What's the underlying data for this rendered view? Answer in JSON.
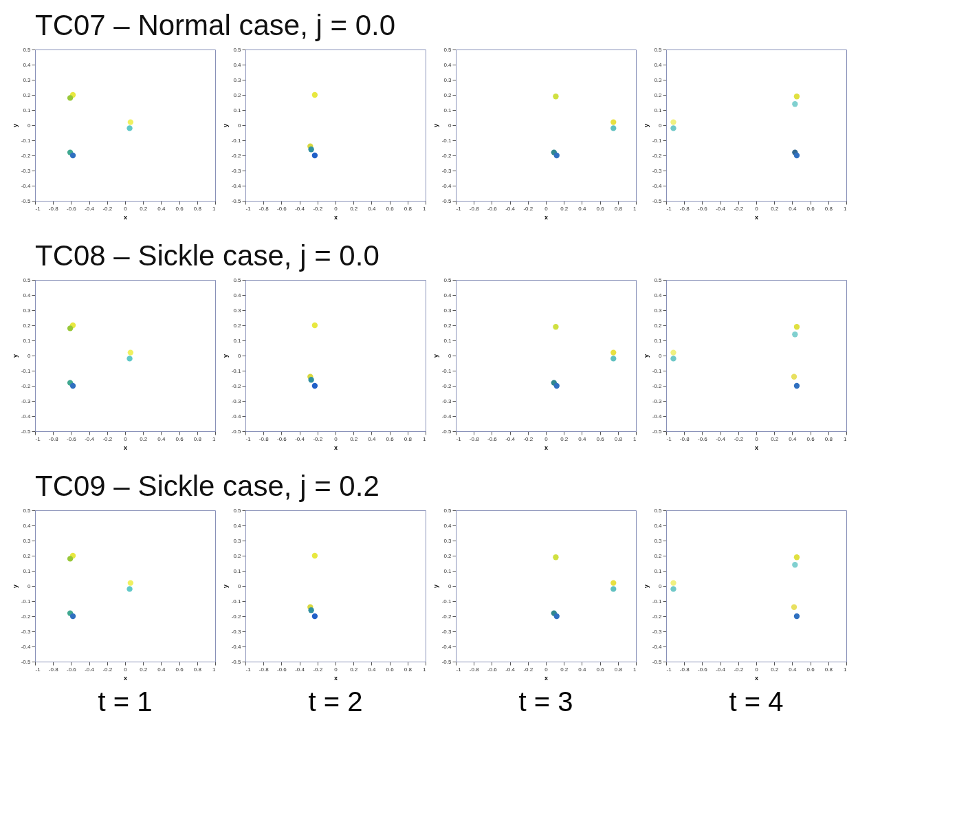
{
  "chart_data": [
    {
      "type": "scatter",
      "title": "TC07 – Normal case, j = 0.0",
      "xlabel": "x",
      "ylabel": "y",
      "xlim": [
        -1,
        1
      ],
      "ylim": [
        -0.5,
        0.5
      ],
      "xticks": [
        -1,
        -0.8,
        -0.6,
        -0.4,
        -0.2,
        0,
        0.2,
        0.4,
        0.6,
        0.8,
        1
      ],
      "yticks": [
        -0.5,
        -0.4,
        -0.3,
        -0.2,
        -0.1,
        0,
        0.1,
        0.2,
        0.3,
        0.4,
        0.5
      ],
      "x": [
        -0.58,
        -0.61,
        0.06,
        0.05,
        -0.61,
        -0.58
      ],
      "values": [
        0.2,
        0.18,
        0.02,
        -0.02,
        -0.18,
        -0.2
      ],
      "colors": [
        "#e8e840",
        "#98c838",
        "#f0f060",
        "#60c8c8",
        "#40a890",
        "#3070c0"
      ]
    },
    {
      "type": "scatter",
      "xlabel": "x",
      "ylabel": "y",
      "xlim": [
        -1,
        1
      ],
      "ylim": [
        -0.5,
        0.5
      ],
      "xticks": [
        -1,
        -0.8,
        -0.6,
        -0.4,
        -0.2,
        0,
        0.2,
        0.4,
        0.6,
        0.8,
        1
      ],
      "yticks": [
        -0.5,
        -0.4,
        -0.3,
        -0.2,
        -0.1,
        0,
        0.1,
        0.2,
        0.3,
        0.4,
        0.5
      ],
      "x": [
        -0.23,
        -0.28,
        -0.27,
        -0.23
      ],
      "values": [
        0.2,
        -0.14,
        -0.16,
        -0.2
      ],
      "colors": [
        "#e8e840",
        "#d8d840",
        "#3090a0",
        "#2060c8"
      ]
    },
    {
      "type": "scatter",
      "xlabel": "x",
      "ylabel": "y",
      "xlim": [
        -1,
        1
      ],
      "ylim": [
        -0.5,
        0.5
      ],
      "xticks": [
        -1,
        -0.8,
        -0.6,
        -0.4,
        -0.2,
        0,
        0.2,
        0.4,
        0.6,
        0.8,
        1
      ],
      "yticks": [
        -0.5,
        -0.4,
        -0.3,
        -0.2,
        -0.1,
        0,
        0.1,
        0.2,
        0.3,
        0.4,
        0.5
      ],
      "x": [
        0.11,
        0.75,
        0.75,
        0.09,
        0.12
      ],
      "values": [
        0.19,
        0.02,
        -0.02,
        -0.18,
        -0.2
      ],
      "colors": [
        "#d0e040",
        "#e8e040",
        "#60c0c0",
        "#308890",
        "#3070c0"
      ]
    },
    {
      "type": "scatter",
      "xlabel": "x",
      "ylabel": "y",
      "xlim": [
        -1,
        1
      ],
      "ylim": [
        -0.5,
        0.5
      ],
      "xticks": [
        -1,
        -0.8,
        -0.6,
        -0.4,
        -0.2,
        0,
        0.2,
        0.4,
        0.6,
        0.8,
        1
      ],
      "yticks": [
        -0.5,
        -0.4,
        -0.3,
        -0.2,
        -0.1,
        0,
        0.1,
        0.2,
        0.3,
        0.4,
        0.5
      ],
      "x": [
        0.45,
        0.43,
        -0.92,
        -0.92,
        0.43,
        0.45
      ],
      "values": [
        0.19,
        0.14,
        0.02,
        -0.02,
        -0.18,
        -0.2
      ],
      "colors": [
        "#e0e040",
        "#80d0d0",
        "#f0f080",
        "#70c8c8",
        "#306890",
        "#3070c0"
      ]
    },
    {
      "type": "scatter",
      "title": "TC08 – Sickle case, j = 0.0",
      "xlabel": "x",
      "ylabel": "y",
      "xlim": [
        -1,
        1
      ],
      "ylim": [
        -0.5,
        0.5
      ],
      "xticks": [
        -1,
        -0.8,
        -0.6,
        -0.4,
        -0.2,
        0,
        0.2,
        0.4,
        0.6,
        0.8,
        1
      ],
      "yticks": [
        -0.5,
        -0.4,
        -0.3,
        -0.2,
        -0.1,
        0,
        0.1,
        0.2,
        0.3,
        0.4,
        0.5
      ],
      "x": [
        -0.58,
        -0.61,
        0.06,
        0.05,
        -0.61,
        -0.58
      ],
      "values": [
        0.2,
        0.18,
        0.02,
        -0.02,
        -0.18,
        -0.2
      ],
      "colors": [
        "#e8e840",
        "#98c838",
        "#f0f060",
        "#60c8c8",
        "#40a890",
        "#3070c0"
      ]
    },
    {
      "type": "scatter",
      "xlabel": "x",
      "ylabel": "y",
      "xlim": [
        -1,
        1
      ],
      "ylim": [
        -0.5,
        0.5
      ],
      "xticks": [
        -1,
        -0.8,
        -0.6,
        -0.4,
        -0.2,
        0,
        0.2,
        0.4,
        0.6,
        0.8,
        1
      ],
      "yticks": [
        -0.5,
        -0.4,
        -0.3,
        -0.2,
        -0.1,
        0,
        0.1,
        0.2,
        0.3,
        0.4,
        0.5
      ],
      "x": [
        -0.23,
        -0.28,
        -0.27,
        -0.23
      ],
      "values": [
        0.2,
        -0.14,
        -0.16,
        -0.2
      ],
      "colors": [
        "#e8e840",
        "#d8d840",
        "#3090a0",
        "#2060c8"
      ]
    },
    {
      "type": "scatter",
      "xlabel": "x",
      "ylabel": "y",
      "xlim": [
        -1,
        1
      ],
      "ylim": [
        -0.5,
        0.5
      ],
      "xticks": [
        -1,
        -0.8,
        -0.6,
        -0.4,
        -0.2,
        0,
        0.2,
        0.4,
        0.6,
        0.8,
        1
      ],
      "yticks": [
        -0.5,
        -0.4,
        -0.3,
        -0.2,
        -0.1,
        0,
        0.1,
        0.2,
        0.3,
        0.4,
        0.5
      ],
      "x": [
        0.11,
        0.75,
        0.75,
        0.09,
        0.12
      ],
      "values": [
        0.19,
        0.02,
        -0.02,
        -0.18,
        -0.2
      ],
      "colors": [
        "#d0e040",
        "#e8e040",
        "#60c0c0",
        "#308890",
        "#3070c0"
      ]
    },
    {
      "type": "scatter",
      "xlabel": "x",
      "ylabel": "y",
      "xlim": [
        -1,
        1
      ],
      "ylim": [
        -0.5,
        0.5
      ],
      "xticks": [
        -1,
        -0.8,
        -0.6,
        -0.4,
        -0.2,
        0,
        0.2,
        0.4,
        0.6,
        0.8,
        1
      ],
      "yticks": [
        -0.5,
        -0.4,
        -0.3,
        -0.2,
        -0.1,
        0,
        0.1,
        0.2,
        0.3,
        0.4,
        0.5
      ],
      "x": [
        0.45,
        0.43,
        -0.92,
        -0.92,
        0.42,
        0.45
      ],
      "values": [
        0.19,
        0.14,
        0.02,
        -0.02,
        -0.14,
        -0.2
      ],
      "colors": [
        "#e0e040",
        "#80d0d0",
        "#f0f080",
        "#70c8c8",
        "#e8e060",
        "#3070c0"
      ]
    },
    {
      "type": "scatter",
      "title": "TC09 – Sickle case, j = 0.2",
      "xlabel": "x",
      "ylabel": "y",
      "annotations": [
        "t = 1"
      ],
      "xlim": [
        -1,
        1
      ],
      "ylim": [
        -0.5,
        0.5
      ],
      "xticks": [
        -1,
        -0.8,
        -0.6,
        -0.4,
        -0.2,
        0,
        0.2,
        0.4,
        0.6,
        0.8,
        1
      ],
      "yticks": [
        -0.5,
        -0.4,
        -0.3,
        -0.2,
        -0.1,
        0,
        0.1,
        0.2,
        0.3,
        0.4,
        0.5
      ],
      "x": [
        -0.58,
        -0.61,
        0.06,
        0.05,
        -0.61,
        -0.58
      ],
      "values": [
        0.2,
        0.18,
        0.02,
        -0.02,
        -0.18,
        -0.2
      ],
      "colors": [
        "#e8e840",
        "#98c838",
        "#f0f060",
        "#60c8c8",
        "#40a890",
        "#3070c0"
      ]
    },
    {
      "type": "scatter",
      "xlabel": "x",
      "ylabel": "y",
      "annotations": [
        "t = 2"
      ],
      "xlim": [
        -1,
        1
      ],
      "ylim": [
        -0.5,
        0.5
      ],
      "xticks": [
        -1,
        -0.8,
        -0.6,
        -0.4,
        -0.2,
        0,
        0.2,
        0.4,
        0.6,
        0.8,
        1
      ],
      "yticks": [
        -0.5,
        -0.4,
        -0.3,
        -0.2,
        -0.1,
        0,
        0.1,
        0.2,
        0.3,
        0.4,
        0.5
      ],
      "x": [
        -0.23,
        -0.28,
        -0.27,
        -0.23
      ],
      "values": [
        0.2,
        -0.14,
        -0.16,
        -0.2
      ],
      "colors": [
        "#e8e840",
        "#d8d840",
        "#3090a0",
        "#2060c8"
      ]
    },
    {
      "type": "scatter",
      "xlabel": "x",
      "ylabel": "y",
      "annotations": [
        "t = 3"
      ],
      "xlim": [
        -1,
        1
      ],
      "ylim": [
        -0.5,
        0.5
      ],
      "xticks": [
        -1,
        -0.8,
        -0.6,
        -0.4,
        -0.2,
        0,
        0.2,
        0.4,
        0.6,
        0.8,
        1
      ],
      "yticks": [
        -0.5,
        -0.4,
        -0.3,
        -0.2,
        -0.1,
        0,
        0.1,
        0.2,
        0.3,
        0.4,
        0.5
      ],
      "x": [
        0.11,
        0.75,
        0.75,
        0.09,
        0.12
      ],
      "values": [
        0.19,
        0.02,
        -0.02,
        -0.18,
        -0.2
      ],
      "colors": [
        "#d0e040",
        "#e8e040",
        "#60c0c0",
        "#308890",
        "#3070c0"
      ]
    },
    {
      "type": "scatter",
      "xlabel": "x",
      "ylabel": "y",
      "annotations": [
        "t = 4"
      ],
      "xlim": [
        -1,
        1
      ],
      "ylim": [
        -0.5,
        0.5
      ],
      "xticks": [
        -1,
        -0.8,
        -0.6,
        -0.4,
        -0.2,
        0,
        0.2,
        0.4,
        0.6,
        0.8,
        1
      ],
      "yticks": [
        -0.5,
        -0.4,
        -0.3,
        -0.2,
        -0.1,
        0,
        0.1,
        0.2,
        0.3,
        0.4,
        0.5
      ],
      "x": [
        0.45,
        0.43,
        -0.92,
        -0.92,
        0.42,
        0.45
      ],
      "values": [
        0.19,
        0.14,
        0.02,
        -0.02,
        -0.14,
        -0.2
      ],
      "colors": [
        "#e0e040",
        "#80d0d0",
        "#f0f080",
        "#70c8c8",
        "#e8e060",
        "#3070c0"
      ]
    }
  ]
}
